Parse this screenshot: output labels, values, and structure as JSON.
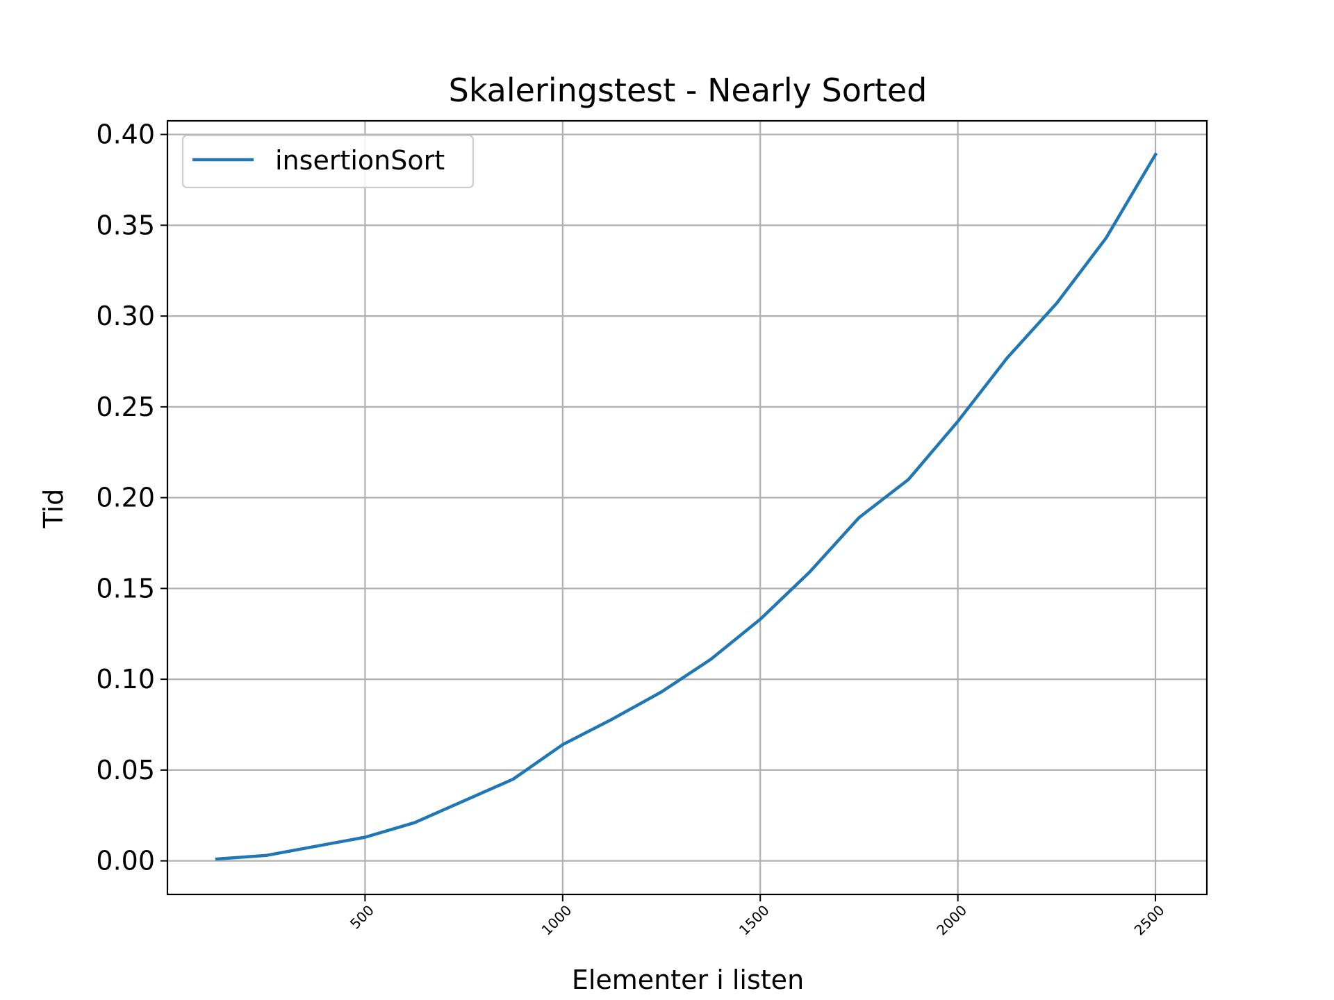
{
  "chart_data": {
    "type": "line",
    "title": "Skaleringstest - Nearly Sorted",
    "xlabel": "Elementer i listen",
    "ylabel": "Tid",
    "xlim": [
      0,
      2630
    ],
    "ylim": [
      -0.0185,
      0.4075
    ],
    "xticks": [
      500,
      1000,
      1500,
      2000,
      2500
    ],
    "xtick_labels": [
      "500",
      "1000",
      "1500",
      "2000",
      "2500"
    ],
    "yticks": [
      0.0,
      0.05,
      0.1,
      0.15,
      0.2,
      0.25,
      0.3,
      0.35,
      0.4
    ],
    "ytick_labels": [
      "0.00",
      "0.05",
      "0.10",
      "0.15",
      "0.20",
      "0.25",
      "0.30",
      "0.35",
      "0.40"
    ],
    "grid": true,
    "legend_position": "top-left",
    "series": [
      {
        "name": "insertionSort",
        "color": "#1f77b4",
        "x": [
          125,
          250,
          375,
          500,
          625,
          750,
          875,
          1000,
          1125,
          1250,
          1375,
          1500,
          1625,
          1750,
          1875,
          2000,
          2125,
          2250,
          2375,
          2500
        ],
        "y": [
          0.001,
          0.003,
          0.008,
          0.013,
          0.021,
          0.033,
          0.045,
          0.064,
          0.078,
          0.093,
          0.111,
          0.133,
          0.159,
          0.189,
          0.21,
          0.242,
          0.277,
          0.307,
          0.343,
          0.389
        ]
      }
    ]
  }
}
